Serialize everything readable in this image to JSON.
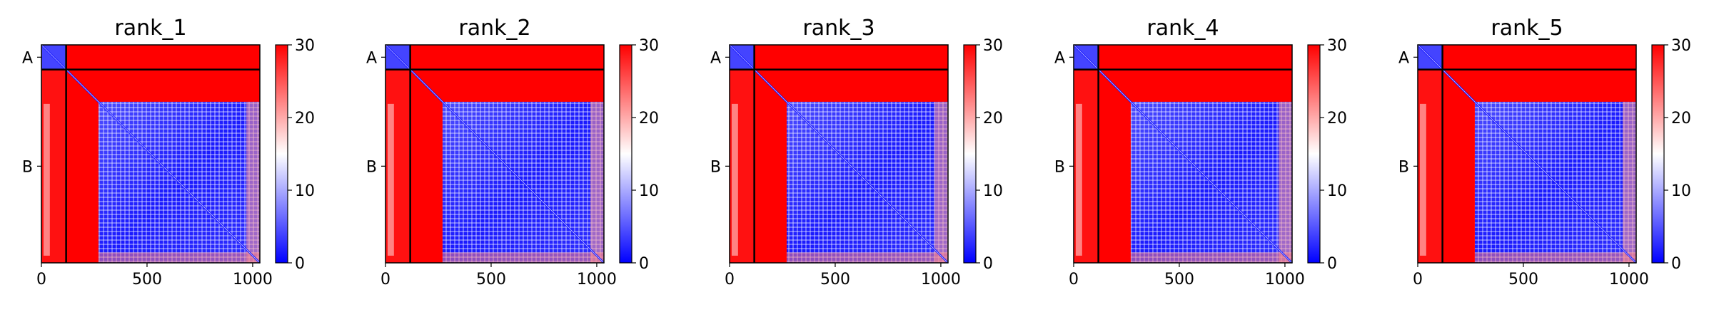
{
  "chart_data": [
    {
      "type": "heatmap",
      "title": "rank_1",
      "x_ticks": [
        0,
        500,
        1000
      ],
      "xlim": [
        0,
        1034
      ],
      "chain_labels": [
        "A",
        "B"
      ],
      "chain_boundaries": [
        0,
        117,
        1034
      ],
      "colorbar": {
        "min": 0,
        "max": 30,
        "ticks": [
          0,
          10,
          20,
          30
        ],
        "colormap": "bwr",
        "low_color": "#0000ff",
        "mid_color": "#ffffff",
        "high_color": "#ff0000"
      },
      "matrix_blocks": [
        {
          "region": "A-A",
          "x_range": [
            0,
            117
          ],
          "y_range": [
            0,
            117
          ],
          "value_mean": 4
        },
        {
          "region": "A-B",
          "x_range": [
            117,
            1034
          ],
          "y_range": [
            0,
            117
          ],
          "value_mean": 30
        },
        {
          "region": "B-A",
          "x_range": [
            0,
            117
          ],
          "y_range": [
            117,
            1034
          ],
          "value_mean": 29
        },
        {
          "region": "B-B",
          "x_range": [
            270,
            1034
          ],
          "y_range": [
            270,
            1034
          ],
          "value_mean": 6
        },
        {
          "region": "B-B-nterm",
          "x_range": [
            117,
            270
          ],
          "y_range": [
            117,
            1034
          ],
          "value_mean": 30
        }
      ]
    },
    {
      "type": "heatmap",
      "title": "rank_2",
      "x_ticks": [
        0,
        500,
        1000
      ],
      "xlim": [
        0,
        1034
      ],
      "chain_labels": [
        "A",
        "B"
      ],
      "chain_boundaries": [
        0,
        117,
        1034
      ],
      "colorbar": {
        "min": 0,
        "max": 30,
        "ticks": [
          0,
          10,
          20,
          30
        ],
        "colormap": "bwr",
        "low_color": "#0000ff",
        "mid_color": "#ffffff",
        "high_color": "#ff0000"
      },
      "matrix_blocks": [
        {
          "region": "A-A",
          "x_range": [
            0,
            117
          ],
          "y_range": [
            0,
            117
          ],
          "value_mean": 4
        },
        {
          "region": "A-B",
          "x_range": [
            117,
            1034
          ],
          "y_range": [
            0,
            117
          ],
          "value_mean": 30
        },
        {
          "region": "B-A",
          "x_range": [
            0,
            117
          ],
          "y_range": [
            117,
            1034
          ],
          "value_mean": 29
        },
        {
          "region": "B-B",
          "x_range": [
            270,
            1034
          ],
          "y_range": [
            270,
            1034
          ],
          "value_mean": 6
        },
        {
          "region": "B-B-nterm",
          "x_range": [
            117,
            270
          ],
          "y_range": [
            117,
            1034
          ],
          "value_mean": 30
        }
      ]
    },
    {
      "type": "heatmap",
      "title": "rank_3",
      "x_ticks": [
        0,
        500,
        1000
      ],
      "xlim": [
        0,
        1034
      ],
      "chain_labels": [
        "A",
        "B"
      ],
      "chain_boundaries": [
        0,
        117,
        1034
      ],
      "colorbar": {
        "min": 0,
        "max": 30,
        "ticks": [
          0,
          10,
          20,
          30
        ],
        "colormap": "bwr",
        "low_color": "#0000ff",
        "mid_color": "#ffffff",
        "high_color": "#ff0000"
      },
      "matrix_blocks": [
        {
          "region": "A-A",
          "x_range": [
            0,
            117
          ],
          "y_range": [
            0,
            117
          ],
          "value_mean": 4
        },
        {
          "region": "A-B",
          "x_range": [
            117,
            1034
          ],
          "y_range": [
            0,
            117
          ],
          "value_mean": 30
        },
        {
          "region": "B-A",
          "x_range": [
            0,
            117
          ],
          "y_range": [
            117,
            1034
          ],
          "value_mean": 29
        },
        {
          "region": "B-B",
          "x_range": [
            270,
            1034
          ],
          "y_range": [
            270,
            1034
          ],
          "value_mean": 6
        },
        {
          "region": "B-B-nterm",
          "x_range": [
            117,
            270
          ],
          "y_range": [
            117,
            1034
          ],
          "value_mean": 30
        }
      ]
    },
    {
      "type": "heatmap",
      "title": "rank_4",
      "x_ticks": [
        0,
        500,
        1000
      ],
      "xlim": [
        0,
        1034
      ],
      "chain_labels": [
        "A",
        "B"
      ],
      "chain_boundaries": [
        0,
        117,
        1034
      ],
      "colorbar": {
        "min": 0,
        "max": 30,
        "ticks": [
          0,
          10,
          20,
          30
        ],
        "colormap": "bwr",
        "low_color": "#0000ff",
        "mid_color": "#ffffff",
        "high_color": "#ff0000"
      },
      "matrix_blocks": [
        {
          "region": "A-A",
          "x_range": [
            0,
            117
          ],
          "y_range": [
            0,
            117
          ],
          "value_mean": 4
        },
        {
          "region": "A-B",
          "x_range": [
            117,
            1034
          ],
          "y_range": [
            0,
            117
          ],
          "value_mean": 30
        },
        {
          "region": "B-A",
          "x_range": [
            0,
            117
          ],
          "y_range": [
            117,
            1034
          ],
          "value_mean": 29
        },
        {
          "region": "B-B",
          "x_range": [
            270,
            1034
          ],
          "y_range": [
            270,
            1034
          ],
          "value_mean": 6
        },
        {
          "region": "B-B-nterm",
          "x_range": [
            117,
            270
          ],
          "y_range": [
            117,
            1034
          ],
          "value_mean": 30
        }
      ]
    },
    {
      "type": "heatmap",
      "title": "rank_5",
      "x_ticks": [
        0,
        500,
        1000
      ],
      "xlim": [
        0,
        1034
      ],
      "chain_labels": [
        "A",
        "B"
      ],
      "chain_boundaries": [
        0,
        117,
        1034
      ],
      "colorbar": {
        "min": 0,
        "max": 30,
        "ticks": [
          0,
          10,
          20,
          30
        ],
        "colormap": "bwr",
        "low_color": "#0000ff",
        "mid_color": "#ffffff",
        "high_color": "#ff0000"
      },
      "matrix_blocks": [
        {
          "region": "A-A",
          "x_range": [
            0,
            117
          ],
          "y_range": [
            0,
            117
          ],
          "value_mean": 4
        },
        {
          "region": "A-B",
          "x_range": [
            117,
            1034
          ],
          "y_range": [
            0,
            117
          ],
          "value_mean": 30
        },
        {
          "region": "B-A",
          "x_range": [
            0,
            117
          ],
          "y_range": [
            117,
            1034
          ],
          "value_mean": 29
        },
        {
          "region": "B-B",
          "x_range": [
            270,
            1034
          ],
          "y_range": [
            270,
            1034
          ],
          "value_mean": 6
        },
        {
          "region": "B-B-nterm",
          "x_range": [
            117,
            270
          ],
          "y_range": [
            117,
            1034
          ],
          "value_mean": 30
        }
      ]
    }
  ]
}
